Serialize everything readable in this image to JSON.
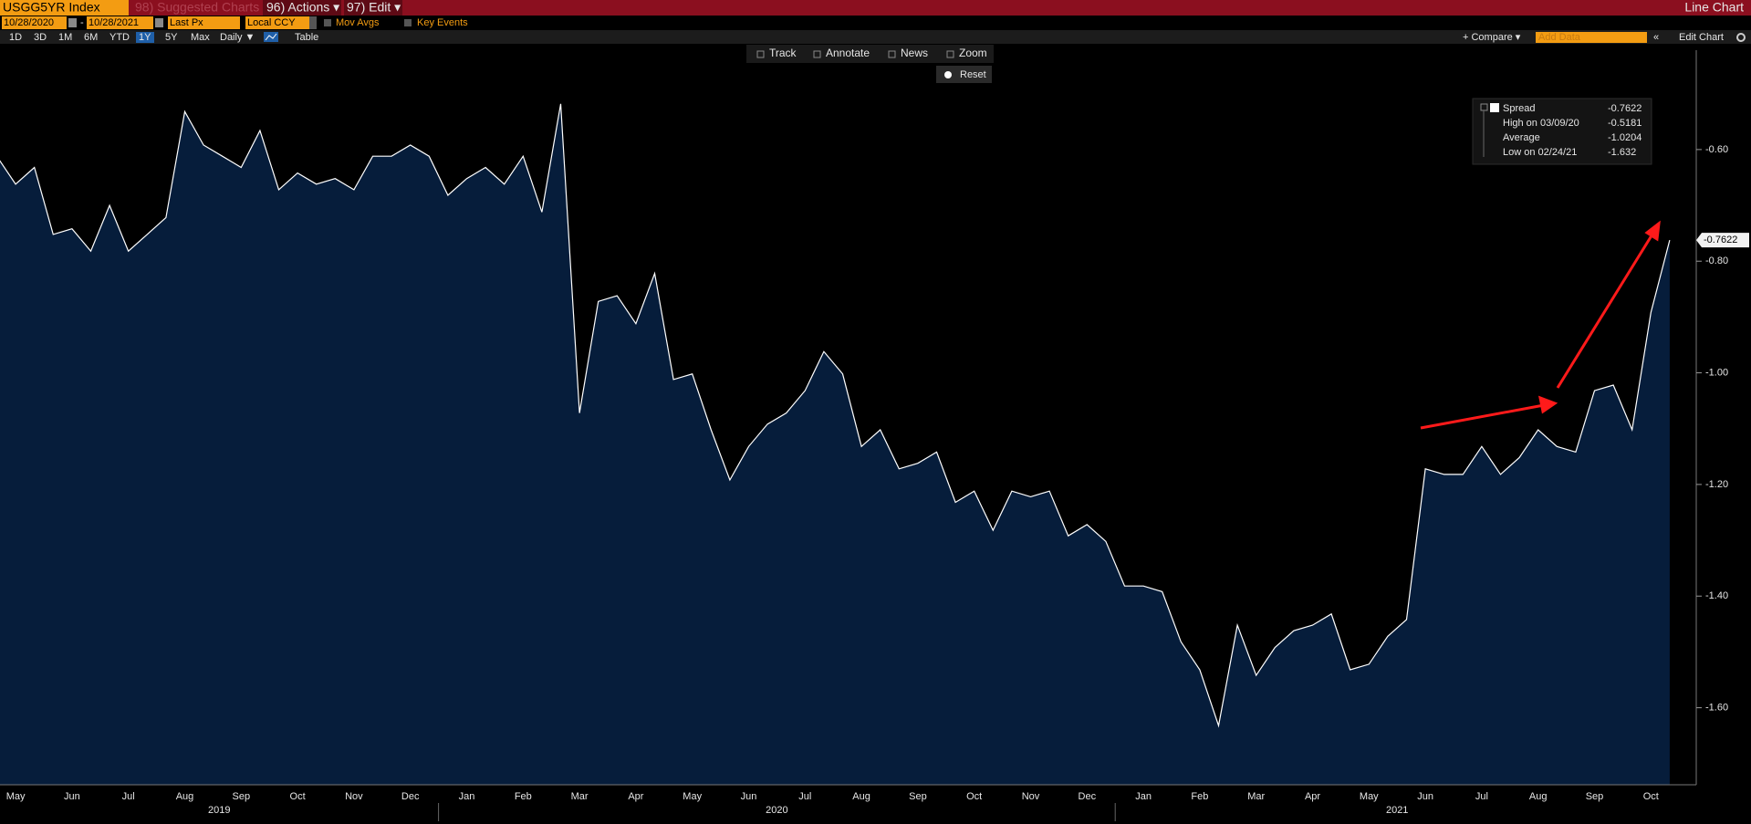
{
  "header": {
    "ticker": "USGG5YR Index",
    "suggested": "98) Suggested Charts",
    "actions": "96) Actions ▾",
    "edit": "97) Edit ▾",
    "view": "Line Chart"
  },
  "settings": {
    "start_date": "10/28/2020",
    "dash": "-",
    "end_date": "10/28/2021",
    "price": "Last Px",
    "currency": "Local CCY",
    "mov_avgs": "Mov Avgs",
    "key_events": "Key Events"
  },
  "ranges": [
    "1D",
    "3D",
    "1M",
    "6M",
    "YTD",
    "1Y",
    "5Y",
    "Max"
  ],
  "frequency": "Daily ▼",
  "table": "Table",
  "compare": "+ Compare ▾",
  "add_data": "Add Data",
  "edit_chart": "Edit Chart",
  "tools": [
    "Track",
    "Annotate",
    "News",
    "Zoom"
  ],
  "reset": "Reset",
  "chart_data": {
    "type": "line",
    "categories": [
      null,
      "May",
      null,
      null,
      "Jun",
      null,
      null,
      "Jul",
      null,
      null,
      "Aug",
      null,
      null,
      "Sep",
      null,
      null,
      "Oct",
      null,
      null,
      "Nov",
      null,
      null,
      "Dec",
      null,
      null,
      "Jan",
      null,
      null,
      "Feb",
      null,
      null,
      "Mar",
      null,
      null,
      "Apr",
      null,
      null,
      "May",
      null,
      null,
      "Jun",
      null,
      null,
      "Jul",
      null,
      null,
      "Aug",
      null,
      null,
      "Sep",
      null,
      null,
      "Oct",
      null,
      null,
      "Nov",
      null,
      null,
      "Dec",
      null,
      null,
      "Jan",
      null,
      null,
      "Feb",
      null,
      null,
      "Mar",
      null,
      null,
      "Apr",
      null,
      null,
      "May",
      null,
      null,
      "Jun",
      null,
      null,
      "Jul",
      null,
      null,
      "Aug",
      null,
      null,
      "Sep",
      null,
      null,
      "Oct",
      null
    ],
    "year_labels": [
      "2019",
      "2020",
      "2021"
    ],
    "series": [
      {
        "name": "Spread",
        "color": "#ffffff",
        "fill": "#061d3b",
        "values": [
          -0.612,
          -0.662,
          -0.632,
          -0.752,
          -0.742,
          -0.782,
          -0.7,
          -0.782,
          -0.752,
          -0.722,
          -0.532,
          -0.592,
          -0.612,
          -0.632,
          -0.566,
          -0.672,
          -0.642,
          -0.662,
          -0.652,
          -0.672,
          -0.612,
          -0.612,
          -0.592,
          -0.612,
          -0.682,
          -0.652,
          -0.632,
          -0.662,
          -0.612,
          -0.712,
          -0.5181,
          -1.072,
          -0.872,
          -0.862,
          -0.912,
          -0.822,
          -1.012,
          -1.002,
          -1.102,
          -1.192,
          -1.132,
          -1.092,
          -1.072,
          -1.032,
          -0.962,
          -1.002,
          -1.132,
          -1.102,
          -1.172,
          -1.162,
          -1.142,
          -1.232,
          -1.212,
          -1.282,
          -1.212,
          -1.222,
          -1.212,
          -1.292,
          -1.272,
          -1.302,
          -1.382,
          -1.382,
          -1.392,
          -1.482,
          -1.532,
          -1.632,
          -1.452,
          -1.542,
          -1.492,
          -1.462,
          -1.452,
          -1.432,
          -1.532,
          -1.522,
          -1.472,
          -1.442,
          -1.172,
          -1.182,
          -1.182,
          -1.132,
          -1.182,
          -1.152,
          -1.102,
          -1.132,
          -1.142,
          -1.032,
          -1.022,
          -1.102,
          -0.892,
          -0.7622
        ]
      }
    ],
    "stats": [
      {
        "label": "High on 03/09/20",
        "value": -0.5181
      },
      {
        "label": "Average",
        "value": -1.0204
      },
      {
        "label": "Low on 02/24/21",
        "value": -1.632
      }
    ],
    "ylim": [
      -1.738,
      -0.422
    ],
    "yticks": [
      {
        "value": -0.6,
        "label": "-0.60"
      },
      {
        "value": -0.8,
        "label": "-0.80"
      },
      {
        "value": -1.0,
        "label": "-1.00"
      },
      {
        "value": -1.2,
        "label": "-1.20"
      },
      {
        "value": -1.4,
        "label": "-1.40"
      },
      {
        "value": -1.6,
        "label": "-1.60"
      }
    ],
    "grid": false
  }
}
